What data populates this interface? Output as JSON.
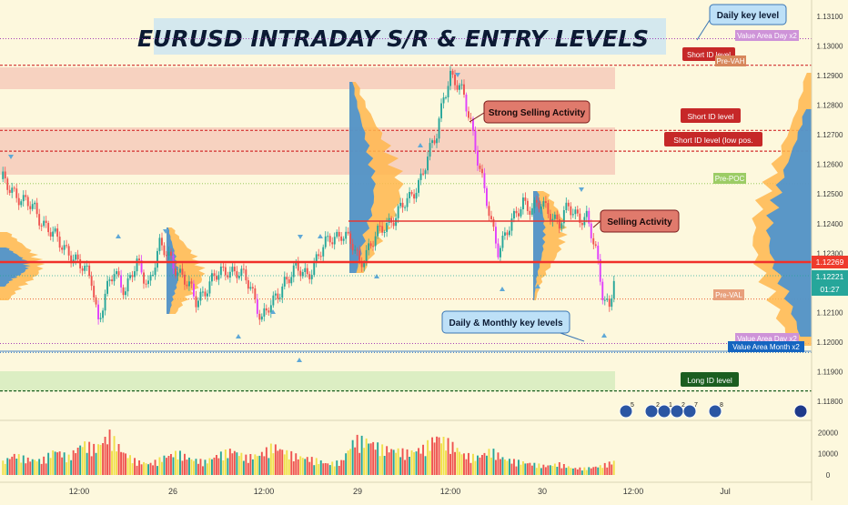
{
  "chart_data": {
    "type": "candlestick",
    "title": "EURUSD INTRADAY S/R & ENTRY LEVELS",
    "price_axis": {
      "ticks": [
        "1.13100",
        "1.13000",
        "1.12900",
        "1.12800",
        "1.12700",
        "1.12600",
        "1.12500",
        "1.12400",
        "1.12300",
        "1.12100",
        "1.12000",
        "1.11900",
        "1.11800"
      ],
      "tick_values": [
        1.131,
        1.13,
        1.129,
        1.128,
        1.127,
        1.126,
        1.125,
        1.124,
        1.123,
        1.121,
        1.12,
        1.119,
        1.118
      ],
      "range": [
        1.1175,
        1.1315
      ],
      "current_price": {
        "value": 1.12269,
        "label": "1.12269"
      },
      "last_price": {
        "value": 1.12221,
        "label": "1.12221",
        "countdown": "01:27"
      }
    },
    "time_axis": [
      "12:00",
      "26",
      "12:00",
      "29",
      "12:00",
      "30",
      "12:00",
      "Jul"
    ],
    "volume_axis": [
      "20000",
      "10000",
      "0"
    ],
    "volume_range": [
      0,
      24000
    ],
    "levels": [
      {
        "label": "Value Area Day x2",
        "price": 1.13025,
        "color": "#9c27b0",
        "style": "dotted"
      },
      {
        "label": "Short ID level",
        "price": 1.12935,
        "color": "#d32f2f",
        "style": "dashed"
      },
      {
        "label": "Pre-VAH",
        "price": 1.12935,
        "color": "#d84315",
        "style": "none"
      },
      {
        "label": "Short ID level",
        "price": 1.12715,
        "color": "#d32f2f",
        "style": "dashed"
      },
      {
        "label": "Short ID level (low pos.",
        "price": 1.12645,
        "color": "#d32f2f",
        "style": "dashed"
      },
      {
        "label": "Pre-POC",
        "price": 1.12535,
        "color": "#8bc34a",
        "style": "dotted"
      },
      {
        "label": "Pre-VAL",
        "price": 1.12145,
        "color": "#e64a19",
        "style": "dotted"
      },
      {
        "label": "Value Area Day x2",
        "price": 1.11995,
        "color": "#9c27b0",
        "style": "dotted"
      },
      {
        "label": "Value Area Month x2",
        "price": 1.11965,
        "color": "#1565c0",
        "style": "dotted"
      },
      {
        "label": "Long ID level",
        "price": 1.11835,
        "color": "#1b5e20",
        "style": "dashed"
      }
    ],
    "annotations": [
      {
        "text": "Daily key level",
        "kind": "blue"
      },
      {
        "text": "Strong Selling Activity",
        "kind": "red"
      },
      {
        "text": "Selling Activity",
        "kind": "red"
      },
      {
        "text": "Daily & Monthly key levels",
        "kind": "blue"
      }
    ],
    "event_badges": [
      "5",
      "2",
      "1",
      "2",
      "7",
      "8"
    ],
    "path_anchors": [
      [
        0,
        1.1255
      ],
      [
        5,
        1.1252
      ],
      [
        10,
        1.1247
      ],
      [
        15,
        1.1245
      ],
      [
        20,
        1.1239
      ],
      [
        25,
        1.1234
      ],
      [
        30,
        1.1231
      ],
      [
        34,
        1.1226
      ],
      [
        40,
        1.1222
      ],
      [
        43,
        1.1207
      ],
      [
        46,
        1.1215
      ],
      [
        50,
        1.1224
      ],
      [
        55,
        1.1218
      ],
      [
        60,
        1.1226
      ],
      [
        65,
        1.122
      ],
      [
        70,
        1.1232
      ],
      [
        75,
        1.1228
      ],
      [
        80,
        1.1222
      ],
      [
        86,
        1.1214
      ],
      [
        90,
        1.1218
      ],
      [
        95,
        1.1222
      ],
      [
        100,
        1.1225
      ],
      [
        105,
        1.1223
      ],
      [
        110,
        1.1219
      ],
      [
        115,
        1.1208
      ],
      [
        120,
        1.1213
      ],
      [
        125,
        1.1221
      ],
      [
        130,
        1.1224
      ],
      [
        135,
        1.1223
      ],
      [
        140,
        1.1229
      ],
      [
        145,
        1.1235
      ],
      [
        150,
        1.1237
      ],
      [
        155,
        1.1232
      ],
      [
        158,
        1.1227
      ],
      [
        162,
        1.1232
      ],
      [
        166,
        1.1236
      ],
      [
        170,
        1.124
      ],
      [
        175,
        1.1244
      ],
      [
        180,
        1.1248
      ],
      [
        185,
        1.1256
      ],
      [
        188,
        1.1262
      ],
      [
        192,
        1.127
      ],
      [
        195,
        1.1284
      ],
      [
        198,
        1.129
      ],
      [
        201,
        1.1286
      ],
      [
        204,
        1.1283
      ],
      [
        207,
        1.1275
      ],
      [
        210,
        1.1262
      ],
      [
        213,
        1.125
      ],
      [
        216,
        1.124
      ],
      [
        219,
        1.1232
      ],
      [
        222,
        1.1236
      ],
      [
        226,
        1.1241
      ],
      [
        230,
        1.1248
      ],
      [
        234,
        1.1245
      ],
      [
        238,
        1.1246
      ],
      [
        242,
        1.1244
      ],
      [
        246,
        1.124
      ],
      [
        250,
        1.1245
      ],
      [
        254,
        1.1243
      ],
      [
        258,
        1.1242
      ],
      [
        262,
        1.123
      ],
      [
        265,
        1.1217
      ],
      [
        268,
        1.1212
      ],
      [
        270,
        1.1222
      ]
    ],
    "volume_anchors": [
      [
        0,
        5000
      ],
      [
        6,
        9000
      ],
      [
        12,
        7000
      ],
      [
        18,
        6500
      ],
      [
        24,
        11000
      ],
      [
        30,
        8000
      ],
      [
        36,
        14000
      ],
      [
        42,
        12000
      ],
      [
        48,
        18000
      ],
      [
        54,
        10000
      ],
      [
        60,
        6000
      ],
      [
        66,
        5000
      ],
      [
        72,
        8000
      ],
      [
        78,
        10000
      ],
      [
        84,
        7000
      ],
      [
        90,
        6000
      ],
      [
        96,
        9000
      ],
      [
        102,
        11000
      ],
      [
        108,
        8000
      ],
      [
        114,
        9000
      ],
      [
        120,
        13000
      ],
      [
        126,
        10000
      ],
      [
        132,
        8000
      ],
      [
        138,
        7000
      ],
      [
        144,
        5000
      ],
      [
        150,
        6000
      ],
      [
        156,
        16000
      ],
      [
        162,
        15000
      ],
      [
        168,
        12000
      ],
      [
        174,
        11000
      ],
      [
        180,
        10000
      ],
      [
        186,
        12000
      ],
      [
        192,
        17000
      ],
      [
        198,
        14000
      ],
      [
        204,
        9000
      ],
      [
        210,
        8000
      ],
      [
        216,
        11000
      ],
      [
        222,
        7000
      ],
      [
        228,
        6000
      ],
      [
        234,
        5000
      ],
      [
        240,
        4000
      ],
      [
        246,
        5000
      ],
      [
        252,
        3000
      ],
      [
        258,
        3000
      ],
      [
        264,
        4000
      ],
      [
        270,
        6000
      ]
    ]
  },
  "labels": {
    "title": "EURUSD INTRADAY S/R & ENTRY LEVELS",
    "callout_daily_key": "Daily key level",
    "callout_strong_selling": "Strong Selling Activity",
    "callout_selling": "Selling Activity",
    "callout_daily_monthly": "Daily & Monthly key levels",
    "lvl_va_day_top": "Value Area Day x2",
    "lvl_short_1": "Short ID level",
    "lvl_pre_vah": "Pre-VAH",
    "lvl_short_2": "Short ID level",
    "lvl_short_low": "Short ID level (low pos.",
    "lvl_pre_poc": "Pre-POC",
    "lvl_pre_val": "Pre-VAL",
    "lvl_va_day_bot": "Value Area Day x2",
    "lvl_va_month": "Value Area Month x2",
    "lvl_long": "Long ID level",
    "price_current": "1.12269",
    "price_last": "1.12221",
    "countdown": "01:27"
  },
  "colors": {
    "background": "#fdf8dd",
    "bull": "#26a69a",
    "bear": "#ef5350",
    "bear_strong": "#e040fb",
    "volume_profile_blue": "#3d8fd8",
    "volume_profile_orange": "#ffb74d",
    "zone_red": "#f4c6b5",
    "zone_green": "#d8ecc0",
    "level_red": "#d32f2f",
    "support_line": "#1565c0"
  }
}
